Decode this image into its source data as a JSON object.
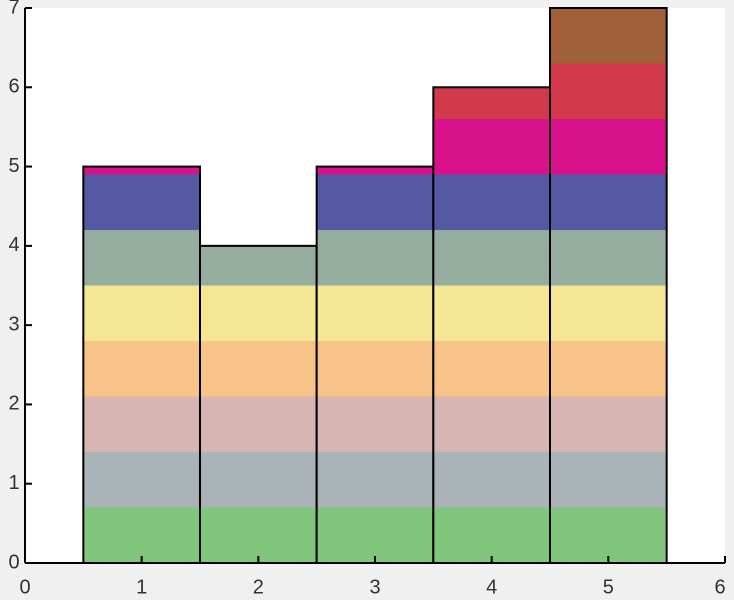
{
  "chart_data": {
    "type": "stacked-bar",
    "x": [
      1,
      2,
      3,
      4,
      5
    ],
    "series": [
      {
        "color": "#80c67c",
        "values": [
          0.7,
          0.7,
          0.7,
          0.7,
          0.7
        ]
      },
      {
        "color": "#a9b3b8",
        "values": [
          0.7,
          0.7,
          0.7,
          0.7,
          0.7
        ]
      },
      {
        "color": "#d6b5b3",
        "values": [
          0.7,
          0.7,
          0.7,
          0.7,
          0.7
        ]
      },
      {
        "color": "#f8c48a",
        "values": [
          0.7,
          0.7,
          0.7,
          0.7,
          0.7
        ]
      },
      {
        "color": "#f5e693",
        "values": [
          0.7,
          0.7,
          0.7,
          0.7,
          0.7
        ]
      },
      {
        "color": "#95ad9f",
        "values": [
          0.7,
          0.5,
          0.7,
          0.7,
          0.7
        ]
      },
      {
        "color": "#5558a2",
        "values": [
          0.7,
          0,
          0.7,
          0.7,
          0.7
        ]
      },
      {
        "color": "#d8128a",
        "values": [
          0.1,
          0,
          0.1,
          0.7,
          0.7
        ]
      },
      {
        "color": "#d2394b",
        "values": [
          0,
          0,
          0,
          0.4,
          0.7
        ]
      },
      {
        "color": "#a0603a",
        "values": [
          0,
          0,
          0,
          0,
          0.7
        ]
      }
    ],
    "xlim": [
      0,
      6
    ],
    "xticks": [
      0,
      1,
      2,
      3,
      4,
      5,
      6
    ],
    "ylim": [
      0,
      7
    ],
    "yticks": [
      0,
      1,
      2,
      3,
      4,
      5,
      6,
      7
    ],
    "bar_width": 1,
    "outline_color": "#000000"
  }
}
